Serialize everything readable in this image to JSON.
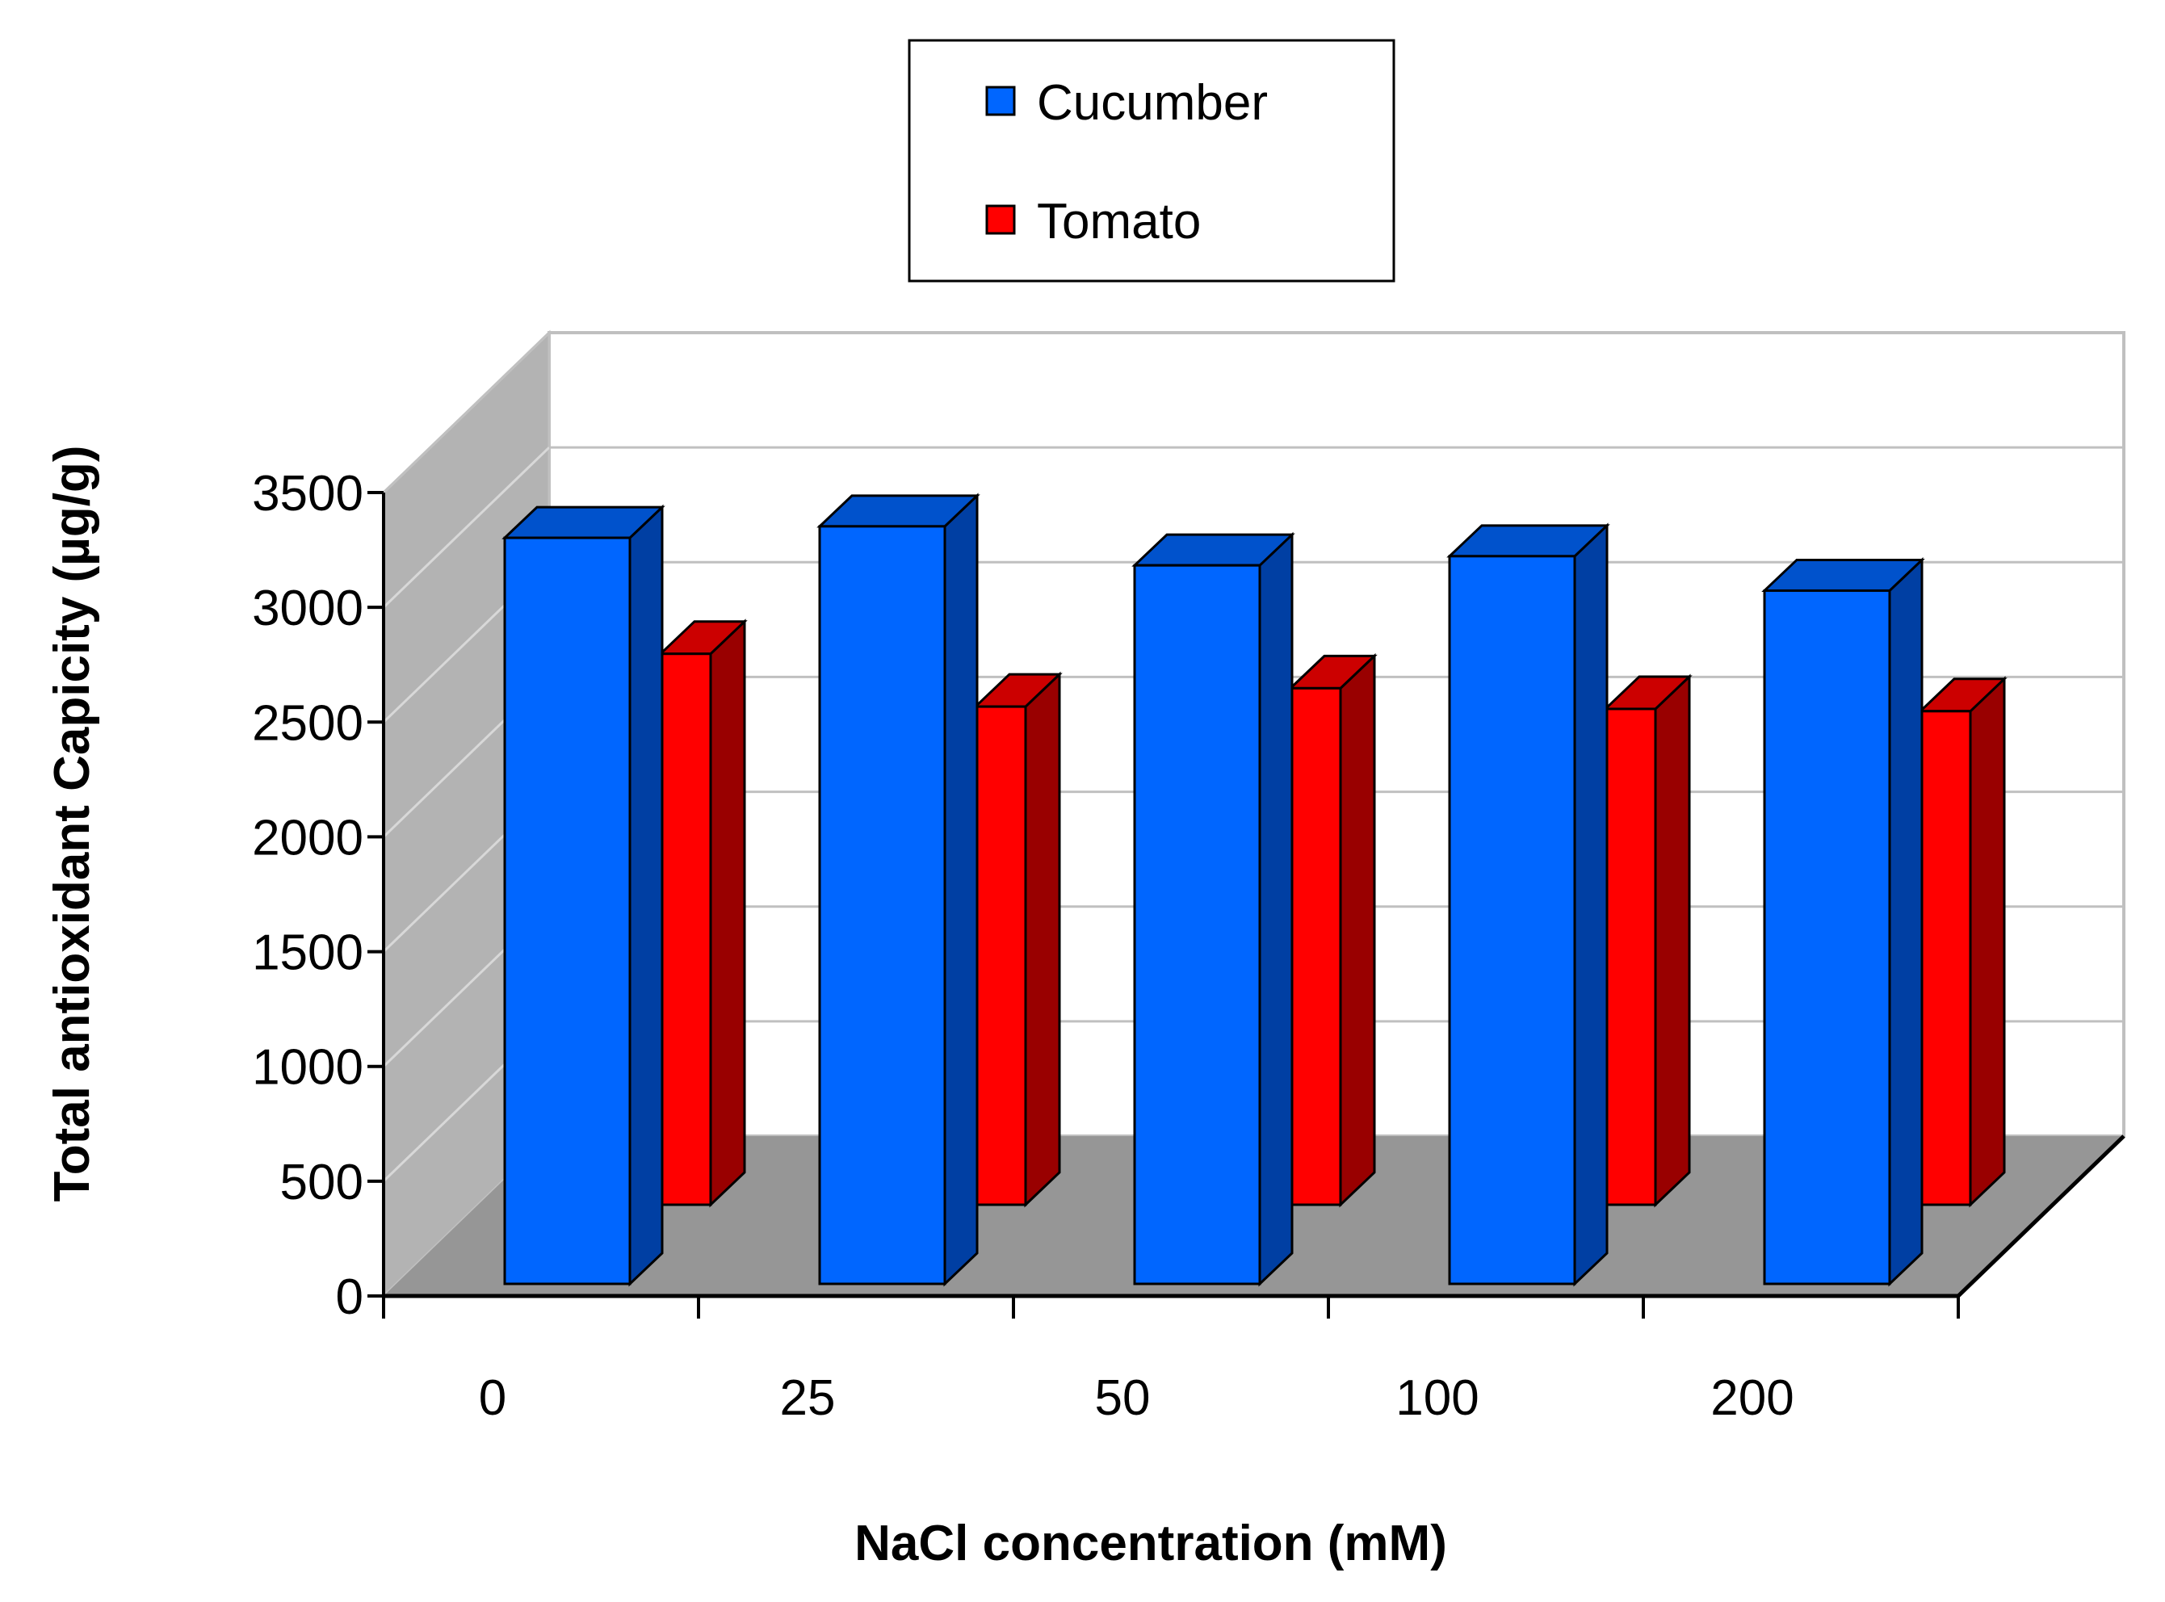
{
  "chart_data": {
    "type": "bar",
    "title": "",
    "xlabel": "NaCl concentration (mM)",
    "ylabel": "Total antioxidant Capicity (µg/g)",
    "categories": [
      "0",
      "25",
      "50",
      "100",
      "200"
    ],
    "series": [
      {
        "name": "Cucumber",
        "values": [
          3250,
          3300,
          3130,
          3170,
          3020
        ],
        "color": "#0066FF"
      },
      {
        "name": "Tomato",
        "values": [
          2400,
          2170,
          2250,
          2160,
          2150
        ],
        "color": "#FF0000"
      }
    ],
    "ylim": [
      0,
      3500
    ],
    "yticks": [
      0,
      500,
      1000,
      1500,
      2000,
      2500,
      3000,
      3500
    ],
    "grid": true,
    "legend_position": "top-center"
  }
}
